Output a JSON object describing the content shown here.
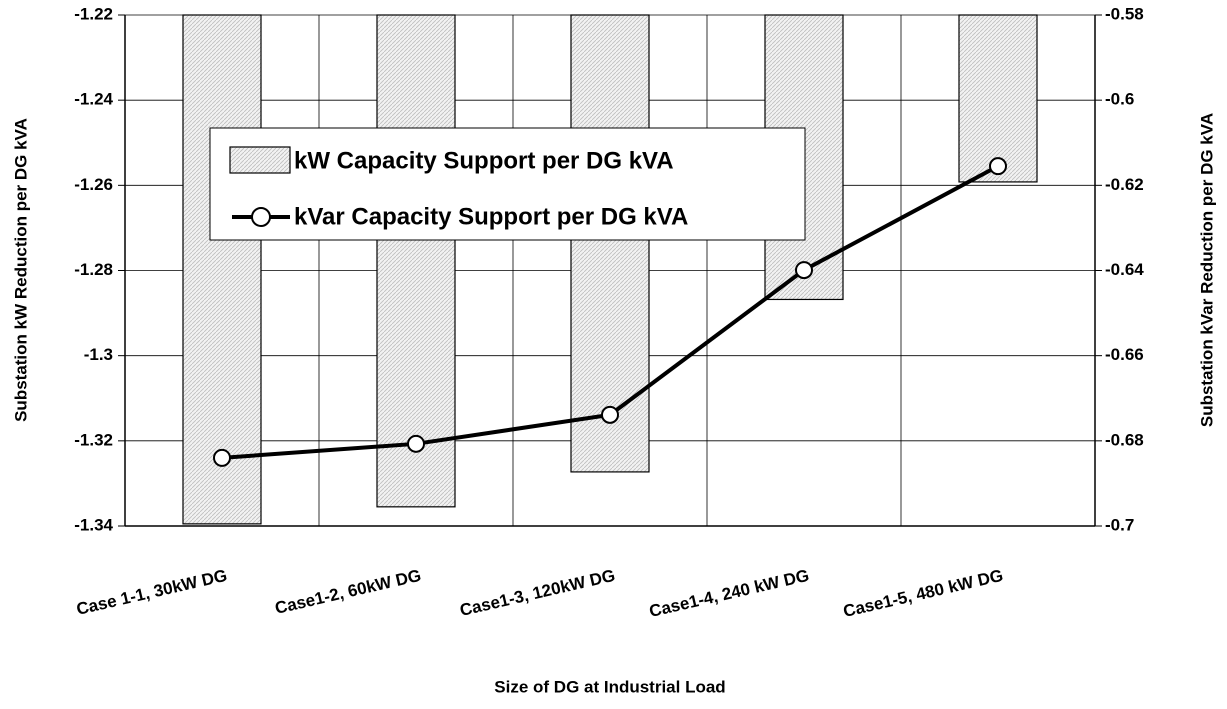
{
  "chart_data": {
    "type": "bar-line",
    "x_label": "Size of DG at Industrial Load",
    "y_label": "Substation kW Reduction per DG kVA",
    "y2_label": "Substation kVar Reduction per DG kVA",
    "categories": [
      "Case 1-1, 30kW DG",
      "Case1-2, 60kW DG",
      "Case1-3, 120kW DG",
      "Case1-4, 240 kW DG",
      "Case1-5, 480 kW DG"
    ],
    "series": [
      {
        "name": "kW Capacity Support per DG kVA",
        "type": "bar",
        "color": "#e4e4e4",
        "values": [
          -1.3395,
          -1.3355,
          -1.3273,
          -1.2868,
          -1.2592
        ]
      },
      {
        "name": "kVar Capacity Support per DG kVA",
        "type": "line",
        "axis": "y2",
        "color": "#000000",
        "values": [
          -0.684,
          -0.6807,
          -0.6739,
          -0.6399,
          -0.6155
        ]
      }
    ],
    "ylim": [
      -1.34,
      -1.22
    ],
    "yticks": [
      -1.34,
      -1.32,
      -1.3,
      -1.28,
      -1.26,
      -1.24,
      -1.22
    ],
    "y2lim": [
      -0.7,
      -0.58
    ],
    "y2ticks": [
      -0.7,
      -0.68,
      -0.66,
      -0.64,
      -0.62,
      -0.6,
      -0.58
    ],
    "grid": true
  }
}
